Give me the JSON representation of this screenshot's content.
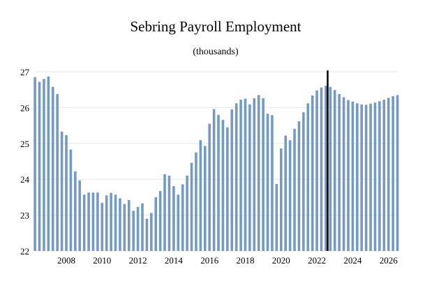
{
  "chart_data": {
    "type": "bar",
    "title": "Sebring Payroll Employment",
    "subtitle": "(thousands)",
    "xlabel": "",
    "ylabel": "",
    "ylim": [
      22,
      27
    ],
    "yticks": [
      22,
      23,
      24,
      25,
      26,
      27
    ],
    "xticks": [
      2008,
      2010,
      2012,
      2014,
      2016,
      2018,
      2020,
      2022,
      2024,
      2026
    ],
    "x_start": 2006.25,
    "x_step": 0.25,
    "forecast_marker_x": 2022.6,
    "grid": true,
    "bar_color": "#7399c6",
    "marker_color": "#000000",
    "values": [
      26.85,
      26.72,
      26.8,
      26.87,
      26.58,
      26.38,
      25.33,
      25.23,
      24.83,
      24.22,
      23.97,
      23.57,
      23.63,
      23.63,
      23.63,
      23.34,
      23.55,
      23.62,
      23.57,
      23.47,
      23.31,
      23.42,
      23.12,
      23.23,
      23.33,
      22.9,
      23.06,
      23.5,
      23.67,
      24.14,
      24.1,
      23.81,
      23.57,
      23.86,
      24.1,
      24.46,
      24.75,
      25.09,
      24.93,
      25.55,
      25.96,
      25.8,
      25.66,
      25.45,
      25.95,
      26.12,
      26.22,
      26.25,
      26.09,
      26.26,
      26.35,
      26.26,
      25.83,
      25.79,
      23.87,
      24.86,
      25.22,
      25.09,
      25.41,
      25.62,
      25.87,
      26.12,
      26.34,
      26.48,
      26.56,
      26.61,
      26.58,
      26.49,
      26.38,
      26.29,
      26.21,
      26.17,
      26.12,
      26.09,
      26.08,
      26.11,
      26.14,
      26.18,
      26.22,
      26.27,
      26.32,
      26.35
    ]
  }
}
